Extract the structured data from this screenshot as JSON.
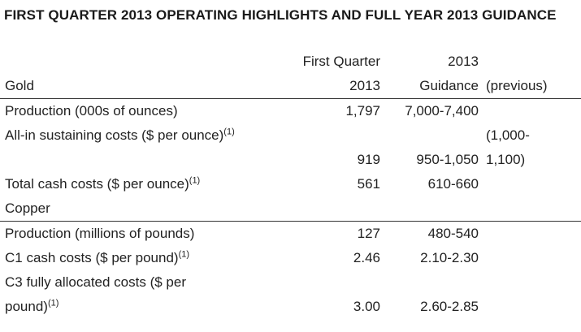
{
  "title": "FIRST QUARTER 2013 OPERATING HIGHLIGHTS AND FULL YEAR 2013 GUIDANCE",
  "header": {
    "col_label": "Gold",
    "col2_top": "First Quarter",
    "col2_bottom": "2013",
    "col3_top": "2013",
    "col3_bottom": "Guidance",
    "col4_bottom": "(previous)"
  },
  "rows": [
    {
      "label": "Production (000s of ounces)",
      "note": "",
      "q1": "1,797",
      "guidance": "7,000-7,400",
      "previous": ""
    },
    {
      "label": "All-in sustaining costs ($ per ounce)",
      "note": "(1)",
      "q1": "919",
      "guidance": "950-1,050",
      "previous_line1": "(1,000-",
      "previous_line2": "1,100)"
    },
    {
      "label": "Total cash costs ($ per ounce)",
      "note": "(1)",
      "q1": "561",
      "guidance": "610-660",
      "previous": ""
    },
    {
      "label": "Copper",
      "note": "",
      "q1": "",
      "guidance": "",
      "previous": ""
    },
    {
      "label": "Production (millions of pounds)",
      "note": "",
      "q1": "127",
      "guidance": "480-540",
      "previous": ""
    },
    {
      "label": "C1 cash costs ($ per pound)",
      "note": "(1)",
      "q1": "2.46",
      "guidance": "2.10-2.30",
      "previous": ""
    },
    {
      "label_line1": "C3 fully allocated costs ($ per",
      "label_line2": "pound)",
      "note": "(1)",
      "q1": "3.00",
      "guidance": "2.60-2.85",
      "previous": ""
    }
  ]
}
